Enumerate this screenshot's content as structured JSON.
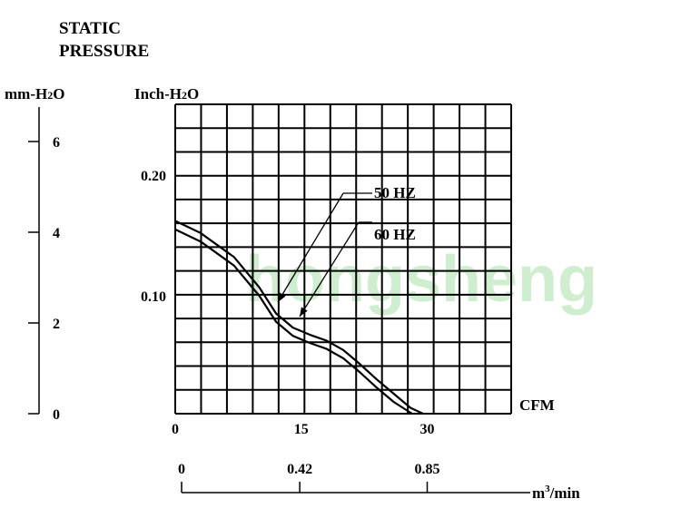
{
  "title_lines": [
    "STATIC",
    "PRESSURE"
  ],
  "watermark": "hongsheng",
  "left_axis": {
    "label": "mm-H2O",
    "label_main": "mm-H",
    "label_sub": "2",
    "label_end": "O",
    "ticks": [
      {
        "value": 6,
        "label": "6"
      },
      {
        "value": 4,
        "label": "4"
      },
      {
        "value": 2,
        "label": "2"
      },
      {
        "value": 0,
        "label": "0"
      }
    ],
    "range": [
      0,
      6
    ]
  },
  "inch_axis": {
    "label": "Inch-H2O",
    "label_main": "Inch-H",
    "label_sub": "2",
    "label_end": "O",
    "ticks": [
      {
        "value": 0.2,
        "label": "0.20"
      },
      {
        "value": 0.1,
        "label": "0.10"
      }
    ]
  },
  "cfm_axis": {
    "label": "CFM",
    "ticks": [
      {
        "value": 0,
        "label": "0"
      },
      {
        "value": 15,
        "label": "15"
      },
      {
        "value": 30,
        "label": "30"
      }
    ],
    "range": [
      0,
      40
    ]
  },
  "m3_axis": {
    "label_main": "m",
    "label_sup": "3",
    "label_end": "/min",
    "ticks": [
      {
        "value": 0,
        "label": "0"
      },
      {
        "value": 0.42,
        "label": "0.42"
      },
      {
        "value": 0.85,
        "label": "0.85"
      }
    ]
  },
  "chart_data": {
    "type": "line",
    "title": "STATIC PRESSURE",
    "xlabel": "CFM",
    "ylabel": "Inch-H2O",
    "xlim": [
      0,
      40
    ],
    "ylim": [
      0,
      0.24
    ],
    "grid": true,
    "series": [
      {
        "name": "50 HZ",
        "x": [
          0,
          3,
          7,
          10,
          12,
          14,
          16,
          18,
          20,
          22,
          24,
          26,
          28.2
        ],
        "y": [
          0.155,
          0.145,
          0.125,
          0.1,
          0.078,
          0.066,
          0.06,
          0.055,
          0.047,
          0.035,
          0.022,
          0.01,
          0.0
        ]
      },
      {
        "name": "60 HZ",
        "x": [
          0,
          3,
          7,
          10,
          12,
          14,
          16,
          18,
          20,
          22,
          24,
          26,
          28,
          29.5
        ],
        "y": [
          0.162,
          0.152,
          0.132,
          0.107,
          0.085,
          0.073,
          0.067,
          0.062,
          0.054,
          0.042,
          0.029,
          0.017,
          0.005,
          0.0
        ]
      }
    ],
    "annotations": [
      "50 HZ",
      "60 HZ"
    ]
  }
}
